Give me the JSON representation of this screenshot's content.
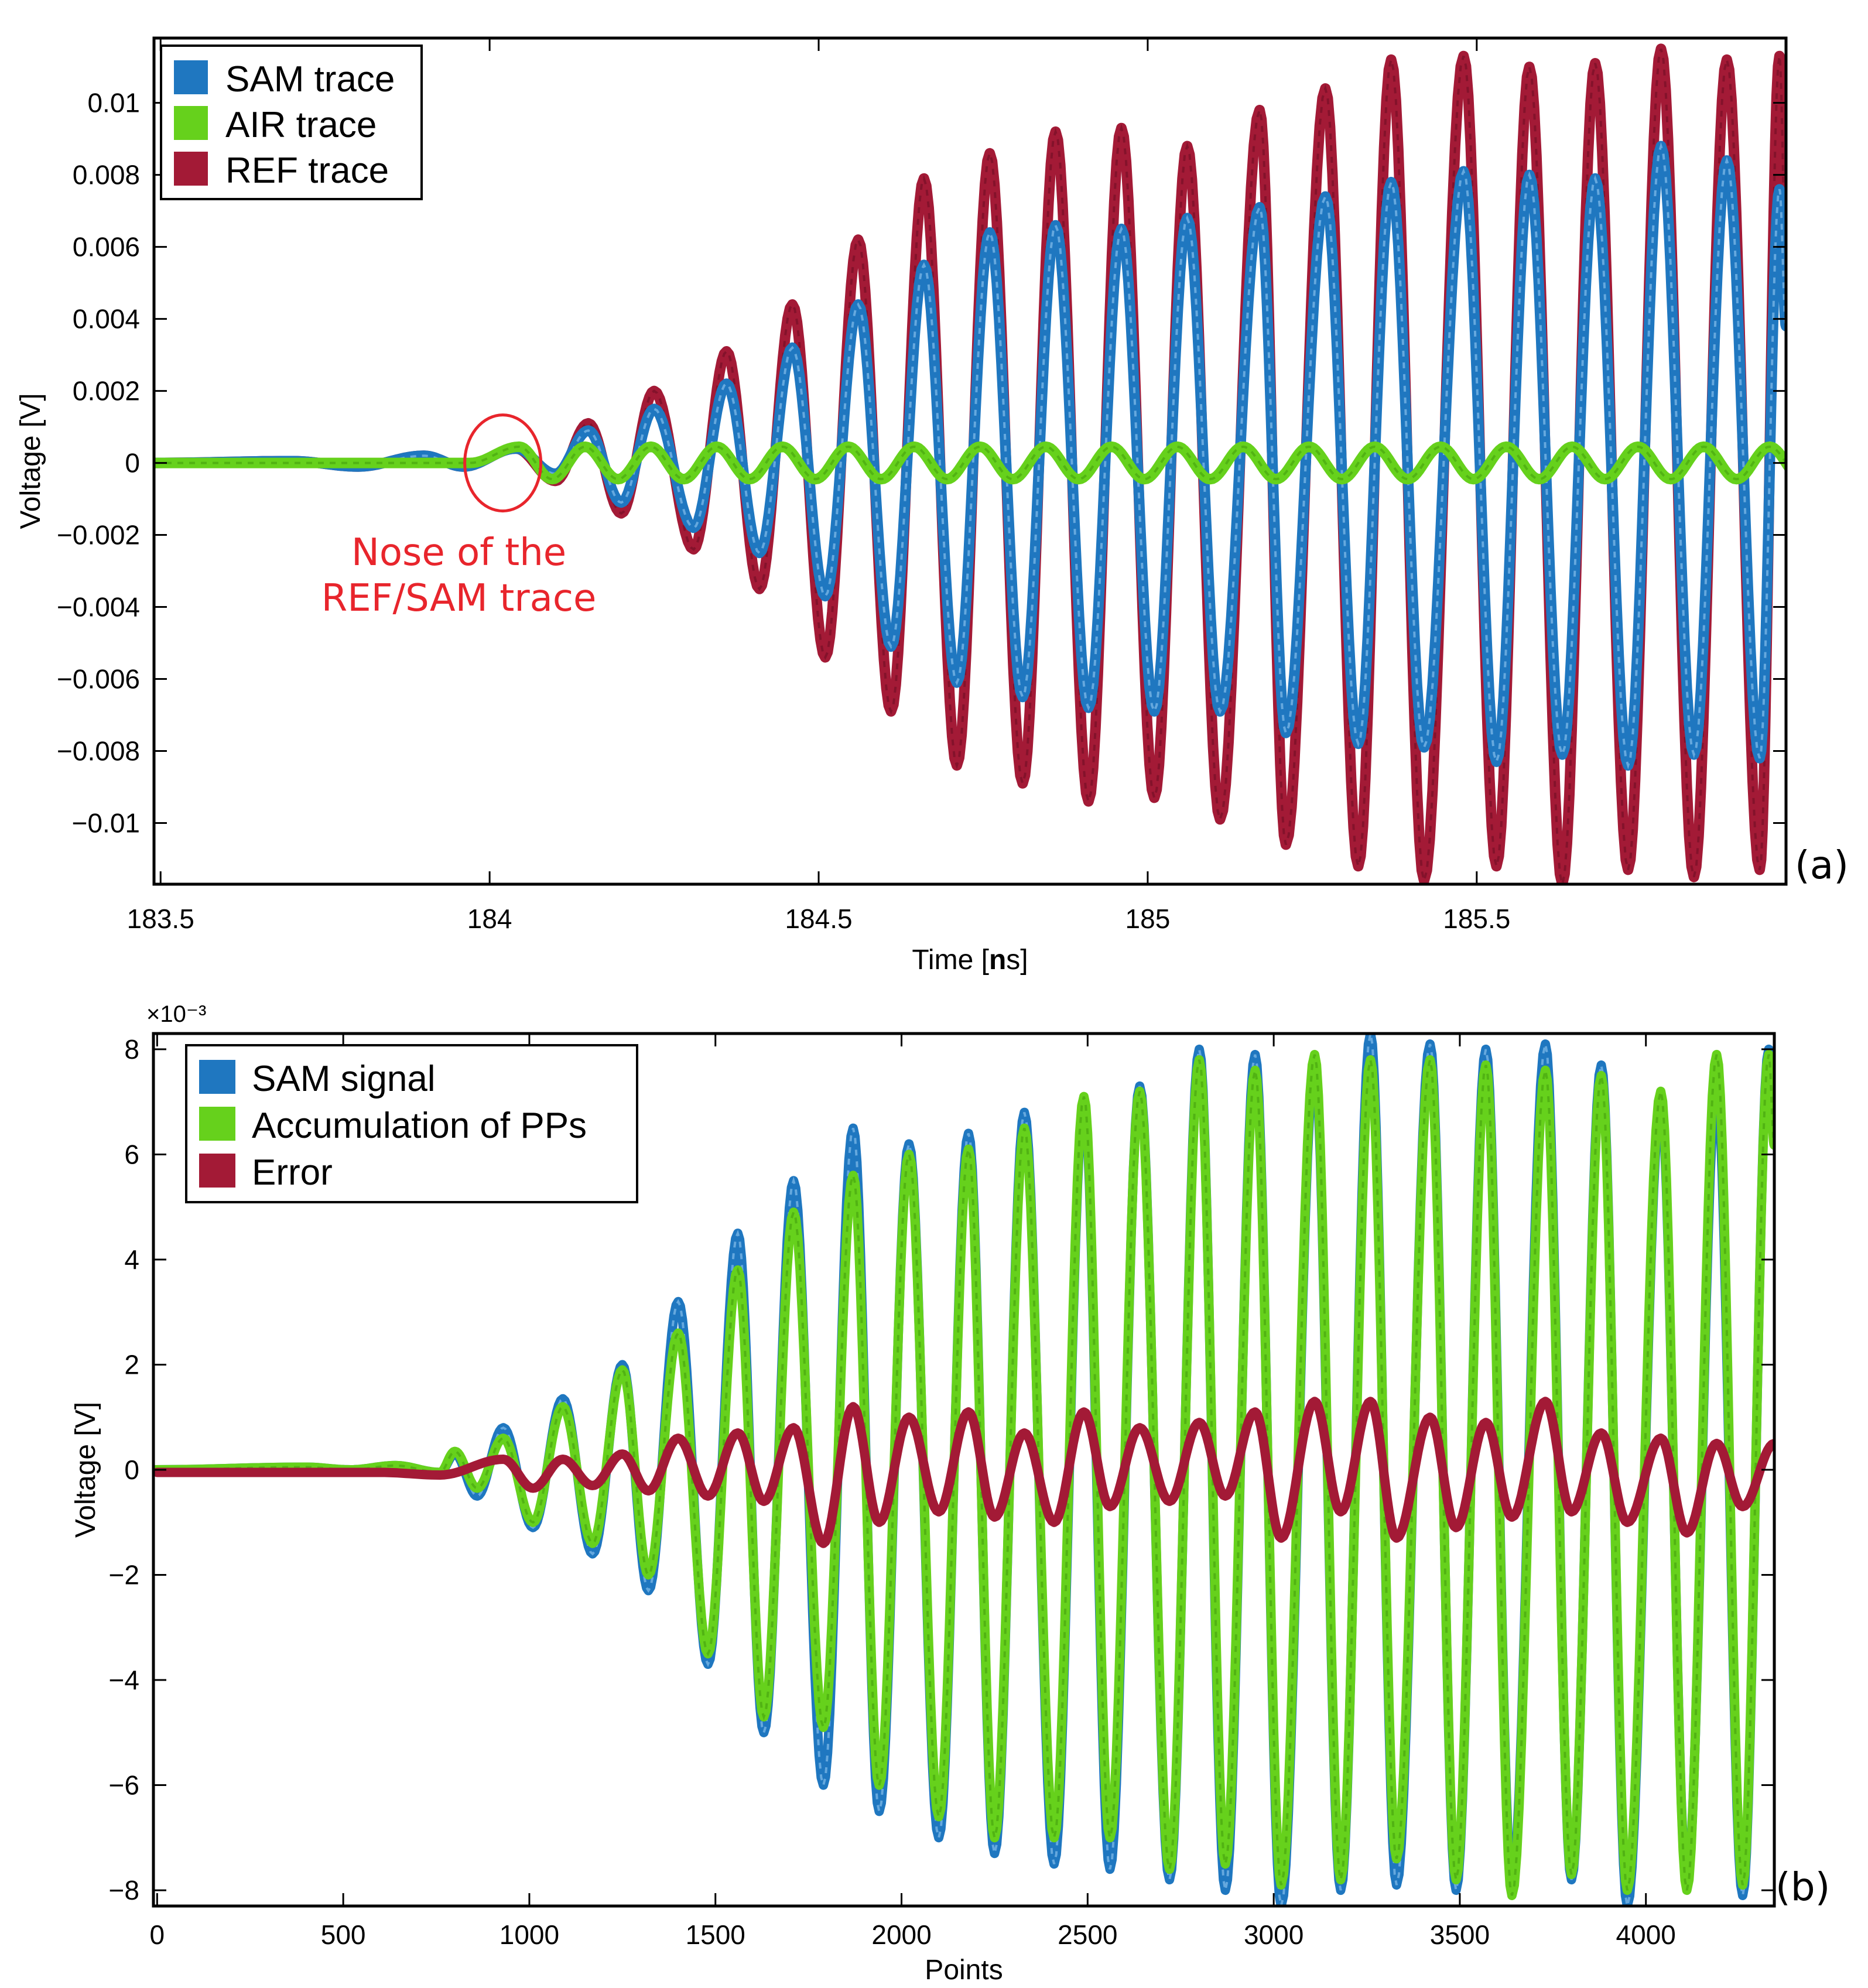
{
  "colors": {
    "sam": "#1f77c0",
    "air": "#66d11c",
    "ref": "#a31a36",
    "annotation": "#e8252c"
  },
  "chart_data": [
    {
      "type": "line",
      "panel_label": "(a)",
      "xlabel": "Time [ns]",
      "ylabel": "Voltage [V]",
      "xlim": [
        183.49,
        185.97
      ],
      "ylim": [
        -0.0117,
        0.0118
      ],
      "xticks": [
        183.5,
        184,
        184.5,
        185,
        185.5
      ],
      "xtick_labels": [
        "183.5",
        "184",
        "184.5",
        "185",
        "185.5"
      ],
      "yticks": [
        0.01,
        0.008,
        0.006,
        0.004,
        0.002,
        0,
        -0.002,
        -0.004,
        -0.006,
        -0.008,
        -0.01
      ],
      "ytick_labels": [
        "0.01",
        "0.008",
        "0.006",
        "0.004",
        "0.002",
        "0",
        "−0.002",
        "−0.004",
        "−0.006",
        "−0.008",
        "−0.01"
      ],
      "legend_position": "top-left",
      "annotation": {
        "lines": [
          "Nose of the",
          "REF/SAM trace"
        ],
        "circle_center": [
          184.02,
          0
        ]
      },
      "series": [
        {
          "name": "SAM trace",
          "key": "sam",
          "peaks": [
            [
              184.15,
              0.0009
            ],
            [
              184.25,
              0.0015
            ],
            [
              184.36,
              0.0022
            ],
            [
              184.46,
              0.0032
            ],
            [
              184.56,
              0.0044
            ],
            [
              184.66,
              0.0055
            ],
            [
              184.76,
              0.0064
            ],
            [
              184.86,
              0.0066
            ],
            [
              184.96,
              0.0065
            ],
            [
              185.06,
              0.0068
            ],
            [
              185.17,
              0.0071
            ],
            [
              185.27,
              0.0074
            ],
            [
              185.37,
              0.0078
            ],
            [
              185.48,
              0.0081
            ],
            [
              185.58,
              0.008
            ],
            [
              185.68,
              0.0079
            ],
            [
              185.78,
              0.0088
            ],
            [
              185.88,
              0.0084
            ],
            [
              185.96,
              0.0076
            ]
          ],
          "troughs": [
            [
              184.1,
              -0.0003
            ],
            [
              184.2,
              -0.0011
            ],
            [
              184.31,
              -0.0018
            ],
            [
              184.41,
              -0.0025
            ],
            [
              184.51,
              -0.0037
            ],
            [
              184.61,
              -0.0051
            ],
            [
              184.71,
              -0.0061
            ],
            [
              184.81,
              -0.0065
            ],
            [
              184.91,
              -0.0068
            ],
            [
              185.01,
              -0.0069
            ],
            [
              185.11,
              -0.0069
            ],
            [
              185.21,
              -0.0075
            ],
            [
              185.32,
              -0.0078
            ],
            [
              185.42,
              -0.0079
            ],
            [
              185.53,
              -0.0083
            ],
            [
              185.63,
              -0.0081
            ],
            [
              185.73,
              -0.0084
            ],
            [
              185.83,
              -0.0081
            ],
            [
              185.93,
              -0.0082
            ]
          ]
        },
        {
          "name": "AIR trace",
          "key": "air",
          "amplitude": 0.00045,
          "start": 184.02,
          "period": 0.1
        },
        {
          "name": "REF trace",
          "key": "ref",
          "peaks": [
            [
              184.15,
              0.0011
            ],
            [
              184.25,
              0.002
            ],
            [
              184.36,
              0.0031
            ],
            [
              184.46,
              0.0044
            ],
            [
              184.56,
              0.0062
            ],
            [
              184.66,
              0.0079
            ],
            [
              184.76,
              0.0086
            ],
            [
              184.86,
              0.0092
            ],
            [
              184.96,
              0.0093
            ],
            [
              185.06,
              0.0088
            ],
            [
              185.17,
              0.0098
            ],
            [
              185.27,
              0.0104
            ],
            [
              185.37,
              0.0112
            ],
            [
              185.48,
              0.0113
            ],
            [
              185.58,
              0.011
            ],
            [
              185.68,
              0.0111
            ],
            [
              185.78,
              0.0115
            ],
            [
              185.88,
              0.0112
            ],
            [
              185.96,
              0.0113
            ]
          ],
          "troughs": [
            [
              184.1,
              -0.0005
            ],
            [
              184.2,
              -0.0014
            ],
            [
              184.31,
              -0.0024
            ],
            [
              184.41,
              -0.0035
            ],
            [
              184.51,
              -0.0054
            ],
            [
              184.61,
              -0.0069
            ],
            [
              184.71,
              -0.0084
            ],
            [
              184.81,
              -0.0089
            ],
            [
              184.91,
              -0.0094
            ],
            [
              185.01,
              -0.0093
            ],
            [
              185.11,
              -0.0099
            ],
            [
              185.21,
              -0.0106
            ],
            [
              185.32,
              -0.0112
            ],
            [
              185.42,
              -0.0116
            ],
            [
              185.53,
              -0.0112
            ],
            [
              185.63,
              -0.0117
            ],
            [
              185.73,
              -0.0113
            ],
            [
              185.83,
              -0.0115
            ],
            [
              185.93,
              -0.0113
            ]
          ]
        }
      ]
    },
    {
      "type": "line",
      "panel_label": "(b)",
      "xlabel": "Points",
      "ylabel": "Voltage [V]",
      "y_multiplier": "×10⁻³",
      "xlim": [
        -10,
        4345
      ],
      "ylim": [
        -8.3,
        8.3
      ],
      "xticks": [
        0,
        500,
        1000,
        1500,
        2000,
        2500,
        3000,
        3500,
        4000
      ],
      "xtick_labels": [
        "0",
        "500",
        "1000",
        "1500",
        "2000",
        "2500",
        "3000",
        "3500",
        "4000"
      ],
      "yticks": [
        8,
        6,
        4,
        2,
        0,
        -2,
        -4,
        -6,
        -8
      ],
      "ytick_labels": [
        "8",
        "6",
        "4",
        "2",
        "0",
        "−2",
        "−4",
        "−6",
        "−8"
      ],
      "legend_position": "top-left",
      "series": [
        {
          "name": "SAM signal",
          "key": "sam",
          "peaks": [
            [
              930,
              0.8
            ],
            [
              1090,
              1.35
            ],
            [
              1250,
              2.0
            ],
            [
              1400,
              3.2
            ],
            [
              1560,
              4.5
            ],
            [
              1710,
              5.5
            ],
            [
              1870,
              6.5
            ],
            [
              2020,
              6.2
            ],
            [
              2180,
              6.4
            ],
            [
              2330,
              6.8
            ],
            [
              2490,
              7.0
            ],
            [
              2640,
              7.3
            ],
            [
              2800,
              8.0
            ],
            [
              2950,
              7.9
            ],
            [
              3110,
              7.7
            ],
            [
              3260,
              8.3
            ],
            [
              3420,
              8.1
            ],
            [
              3570,
              8.0
            ],
            [
              3730,
              8.1
            ],
            [
              3880,
              7.7
            ],
            [
              4040,
              7.0
            ],
            [
              4190,
              7.3
            ],
            [
              4330,
              8.0
            ]
          ],
          "troughs": [
            [
              860,
              -0.5
            ],
            [
              1010,
              -1.1
            ],
            [
              1170,
              -1.6
            ],
            [
              1320,
              -2.3
            ],
            [
              1480,
              -3.7
            ],
            [
              1630,
              -5.0
            ],
            [
              1790,
              -6.0
            ],
            [
              1940,
              -6.5
            ],
            [
              2100,
              -7.0
            ],
            [
              2250,
              -7.3
            ],
            [
              2410,
              -7.5
            ],
            [
              2560,
              -7.6
            ],
            [
              2720,
              -7.8
            ],
            [
              2870,
              -8.0
            ],
            [
              3020,
              -8.3
            ],
            [
              3180,
              -8.0
            ],
            [
              3330,
              -7.9
            ],
            [
              3490,
              -8.0
            ],
            [
              3640,
              -7.9
            ],
            [
              3800,
              -7.8
            ],
            [
              3950,
              -8.3
            ],
            [
              4110,
              -7.9
            ],
            [
              4260,
              -8.1
            ]
          ]
        },
        {
          "name": "Accumulation of PPs",
          "key": "air",
          "peaks": [
            [
              930,
              0.6
            ],
            [
              1090,
              1.2
            ],
            [
              1250,
              1.9
            ],
            [
              1400,
              2.6
            ],
            [
              1560,
              3.8
            ],
            [
              1710,
              4.9
            ],
            [
              1870,
              5.6
            ],
            [
              2020,
              6.0
            ],
            [
              2180,
              6.1
            ],
            [
              2330,
              6.5
            ],
            [
              2490,
              7.1
            ],
            [
              2640,
              7.2
            ],
            [
              2800,
              7.8
            ],
            [
              2950,
              7.6
            ],
            [
              3110,
              7.9
            ],
            [
              3260,
              7.8
            ],
            [
              3420,
              7.8
            ],
            [
              3570,
              7.7
            ],
            [
              3730,
              7.6
            ],
            [
              3880,
              7.5
            ],
            [
              4040,
              7.2
            ],
            [
              4190,
              7.9
            ],
            [
              4330,
              7.9
            ]
          ],
          "troughs": [
            [
              860,
              -0.35
            ],
            [
              1010,
              -1.0
            ],
            [
              1170,
              -1.4
            ],
            [
              1320,
              -2.0
            ],
            [
              1480,
              -3.5
            ],
            [
              1630,
              -4.7
            ],
            [
              1790,
              -4.9
            ],
            [
              1940,
              -6.0
            ],
            [
              2100,
              -6.6
            ],
            [
              2250,
              -7.0
            ],
            [
              2410,
              -7.0
            ],
            [
              2560,
              -7.0
            ],
            [
              2720,
              -7.6
            ],
            [
              2870,
              -7.5
            ],
            [
              3020,
              -7.9
            ],
            [
              3180,
              -7.8
            ],
            [
              3330,
              -7.4
            ],
            [
              3490,
              -7.8
            ],
            [
              3640,
              -8.1
            ],
            [
              3800,
              -7.7
            ],
            [
              3950,
              -8.0
            ],
            [
              4110,
              -8.0
            ],
            [
              4260,
              -7.9
            ]
          ]
        },
        {
          "name": "Error",
          "key": "ref",
          "points": [
            [
              0,
              -0.05
            ],
            [
              600,
              -0.05
            ],
            [
              760,
              -0.1
            ],
            [
              930,
              0.2
            ],
            [
              1010,
              -0.35
            ],
            [
              1090,
              0.2
            ],
            [
              1170,
              -0.3
            ],
            [
              1250,
              0.3
            ],
            [
              1320,
              -0.4
            ],
            [
              1400,
              0.6
            ],
            [
              1480,
              -0.5
            ],
            [
              1560,
              0.7
            ],
            [
              1630,
              -0.6
            ],
            [
              1710,
              0.8
            ],
            [
              1790,
              -1.4
            ],
            [
              1870,
              1.2
            ],
            [
              1940,
              -1.0
            ],
            [
              2020,
              1.0
            ],
            [
              2100,
              -0.8
            ],
            [
              2180,
              1.1
            ],
            [
              2250,
              -0.9
            ],
            [
              2330,
              0.7
            ],
            [
              2410,
              -1.0
            ],
            [
              2490,
              1.1
            ],
            [
              2560,
              -0.7
            ],
            [
              2640,
              0.8
            ],
            [
              2720,
              -0.6
            ],
            [
              2800,
              0.9
            ],
            [
              2870,
              -0.5
            ],
            [
              2950,
              1.1
            ],
            [
              3020,
              -1.3
            ],
            [
              3110,
              1.3
            ],
            [
              3180,
              -0.8
            ],
            [
              3260,
              1.3
            ],
            [
              3330,
              -1.3
            ],
            [
              3420,
              1.0
            ],
            [
              3490,
              -1.1
            ],
            [
              3570,
              0.9
            ],
            [
              3640,
              -0.9
            ],
            [
              3730,
              1.3
            ],
            [
              3800,
              -0.8
            ],
            [
              3880,
              0.7
            ],
            [
              3950,
              -1.0
            ],
            [
              4040,
              0.6
            ],
            [
              4110,
              -1.2
            ],
            [
              4190,
              0.5
            ],
            [
              4260,
              -0.7
            ],
            [
              4345,
              0.5
            ]
          ]
        }
      ]
    }
  ]
}
